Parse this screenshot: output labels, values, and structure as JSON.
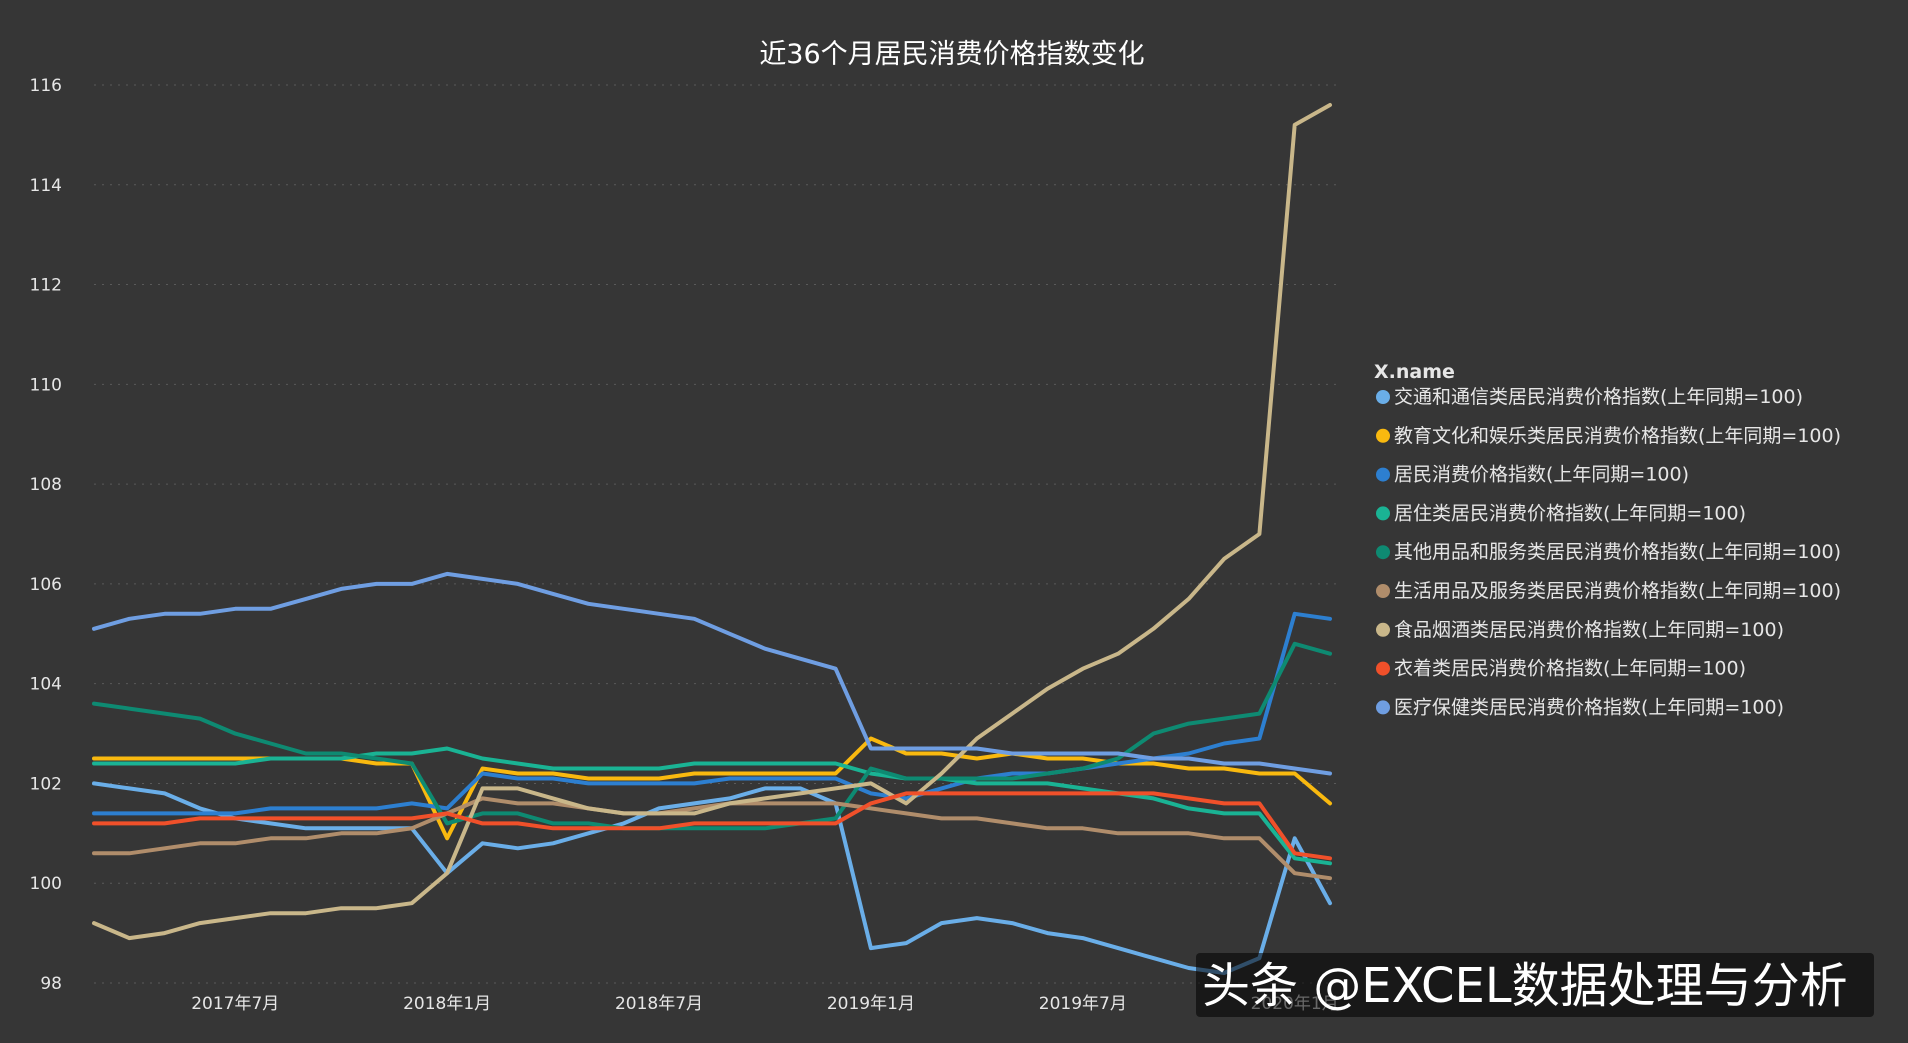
{
  "chart_data": {
    "type": "line",
    "title": "近36个月居民消费价格指数变化",
    "xlabel": "",
    "ylabel": "",
    "ylim": [
      98,
      116
    ],
    "yticks": [
      98,
      100,
      102,
      104,
      106,
      108,
      110,
      112,
      114,
      116
    ],
    "grid": true,
    "legend_position": "right",
    "legend_title": "X.name",
    "xticks": [
      {
        "label": "2017年7月",
        "index": 4
      },
      {
        "label": "2018年1月",
        "index": 10
      },
      {
        "label": "2018年7月",
        "index": 16
      },
      {
        "label": "2019年1月",
        "index": 22
      },
      {
        "label": "2019年7月",
        "index": 28
      },
      {
        "label": "2020年1月",
        "index": 34
      }
    ],
    "series": [
      {
        "name": "交通和通信类居民消费价格指数(上年同期=100)",
        "color": "#6aaee8",
        "values": [
          102.0,
          101.9,
          101.8,
          101.5,
          101.3,
          101.2,
          101.1,
          101.1,
          101.1,
          101.1,
          100.2,
          100.8,
          100.7,
          100.8,
          101.0,
          101.2,
          101.5,
          101.6,
          101.7,
          101.9,
          101.9,
          101.6,
          98.7,
          98.8,
          99.2,
          99.3,
          99.2,
          99.0,
          98.9,
          98.7,
          98.5,
          98.3,
          98.2,
          98.5,
          100.9,
          99.6
        ]
      },
      {
        "name": "教育文化和娱乐类居民消费价格指数(上年同期=100)",
        "color": "#f9b90f",
        "values": [
          102.5,
          102.5,
          102.5,
          102.5,
          102.5,
          102.5,
          102.5,
          102.5,
          102.4,
          102.4,
          100.9,
          102.3,
          102.2,
          102.2,
          102.1,
          102.1,
          102.1,
          102.2,
          102.2,
          102.2,
          102.2,
          102.2,
          102.9,
          102.6,
          102.6,
          102.5,
          102.6,
          102.5,
          102.5,
          102.4,
          102.4,
          102.3,
          102.3,
          102.2,
          102.2,
          101.6
        ]
      },
      {
        "name": "居民消费价格指数(上年同期=100)",
        "color": "#2d7fd0",
        "values": [
          101.4,
          101.4,
          101.4,
          101.4,
          101.4,
          101.5,
          101.5,
          101.5,
          101.5,
          101.6,
          101.5,
          102.2,
          102.1,
          102.1,
          102.0,
          102.0,
          102.0,
          102.0,
          102.1,
          102.1,
          102.1,
          102.1,
          101.8,
          101.7,
          101.9,
          102.1,
          102.2,
          102.2,
          102.3,
          102.4,
          102.5,
          102.6,
          102.8,
          102.9,
          105.4,
          105.3
        ]
      },
      {
        "name": "居住类居民消费价格指数(上年同期=100)",
        "color": "#1ab394",
        "values": [
          102.4,
          102.4,
          102.4,
          102.4,
          102.4,
          102.5,
          102.5,
          102.5,
          102.6,
          102.6,
          102.7,
          102.5,
          102.4,
          102.3,
          102.3,
          102.3,
          102.3,
          102.4,
          102.4,
          102.4,
          102.4,
          102.4,
          102.2,
          102.1,
          102.1,
          102.0,
          102.0,
          102.0,
          101.9,
          101.8,
          101.7,
          101.5,
          101.4,
          101.4,
          100.5,
          100.4
        ]
      },
      {
        "name": "其他用品和服务类居民消费价格指数(上年同期=100)",
        "color": "#0e8a72",
        "values": [
          103.6,
          103.5,
          103.4,
          103.3,
          103.0,
          102.8,
          102.6,
          102.6,
          102.5,
          102.4,
          101.2,
          101.4,
          101.4,
          101.2,
          101.2,
          101.1,
          101.1,
          101.1,
          101.1,
          101.1,
          101.2,
          101.3,
          102.3,
          102.1,
          102.1,
          102.1,
          102.1,
          102.2,
          102.3,
          102.5,
          103.0,
          103.2,
          103.3,
          103.4,
          104.8,
          104.6
        ]
      },
      {
        "name": "生活用品及服务类居民消费价格指数(上年同期=100)",
        "color": "#b08d6b",
        "values": [
          100.6,
          100.6,
          100.7,
          100.8,
          100.8,
          100.9,
          100.9,
          101.0,
          101.0,
          101.1,
          101.4,
          101.7,
          101.6,
          101.6,
          101.5,
          101.4,
          101.4,
          101.5,
          101.6,
          101.6,
          101.6,
          101.6,
          101.5,
          101.4,
          101.3,
          101.3,
          101.2,
          101.1,
          101.1,
          101.0,
          101.0,
          101.0,
          100.9,
          100.9,
          100.2,
          100.1
        ]
      },
      {
        "name": "食品烟酒类居民消费价格指数(上年同期=100)",
        "color": "#c9b78a",
        "values": [
          99.2,
          98.9,
          99.0,
          99.2,
          99.3,
          99.4,
          99.4,
          99.5,
          99.5,
          99.6,
          100.2,
          101.9,
          101.9,
          101.7,
          101.5,
          101.4,
          101.4,
          101.4,
          101.6,
          101.7,
          101.8,
          101.9,
          102.0,
          101.6,
          102.2,
          102.9,
          103.4,
          103.9,
          104.3,
          104.6,
          105.1,
          105.7,
          106.5,
          107.0,
          115.2,
          115.6
        ]
      },
      {
        "name": "衣着类居民消费价格指数(上年同期=100)",
        "color": "#f0502a",
        "values": [
          101.2,
          101.2,
          101.2,
          101.3,
          101.3,
          101.3,
          101.3,
          101.3,
          101.3,
          101.3,
          101.4,
          101.2,
          101.2,
          101.1,
          101.1,
          101.1,
          101.1,
          101.2,
          101.2,
          101.2,
          101.2,
          101.2,
          101.6,
          101.8,
          101.8,
          101.8,
          101.8,
          101.8,
          101.8,
          101.8,
          101.8,
          101.7,
          101.6,
          101.6,
          100.6,
          100.5
        ]
      },
      {
        "name": "医疗保健类居民消费价格指数(上年同期=100)",
        "color": "#6f9ee2",
        "values": [
          105.1,
          105.3,
          105.4,
          105.4,
          105.5,
          105.5,
          105.7,
          105.9,
          106.0,
          106.0,
          106.2,
          106.1,
          106.0,
          105.8,
          105.6,
          105.5,
          105.4,
          105.3,
          105.0,
          104.7,
          104.5,
          104.3,
          102.7,
          102.7,
          102.7,
          102.7,
          102.6,
          102.6,
          102.6,
          102.6,
          102.5,
          102.5,
          102.4,
          102.4,
          102.3,
          102.2
        ]
      }
    ]
  },
  "watermark": "头条 @EXCEL数据处理与分析"
}
